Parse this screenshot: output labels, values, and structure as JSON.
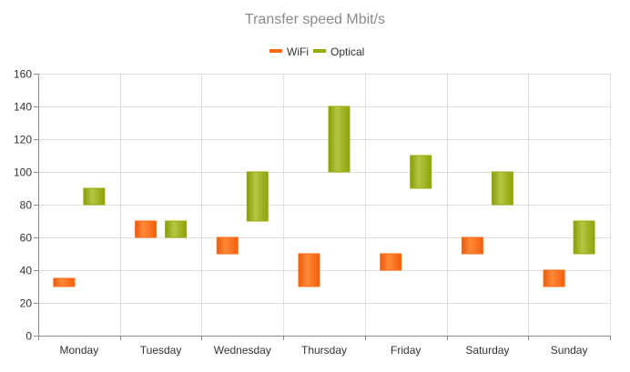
{
  "chart_data": {
    "type": "bar",
    "subtype": "range-column",
    "title": "Transfer speed Mbit/s",
    "categories": [
      "Monday",
      "Tuesday",
      "Wednesday",
      "Thursday",
      "Friday",
      "Saturday",
      "Sunday"
    ],
    "series": [
      {
        "name": "WiFi",
        "color": "#ff6a13",
        "ranges": [
          [
            30,
            35
          ],
          [
            60,
            70
          ],
          [
            50,
            60
          ],
          [
            30,
            50
          ],
          [
            40,
            50
          ],
          [
            50,
            60
          ],
          [
            30,
            40
          ]
        ]
      },
      {
        "name": "Optical",
        "color": "#98ac0e",
        "ranges": [
          [
            80,
            90
          ],
          [
            60,
            70
          ],
          [
            70,
            100
          ],
          [
            100,
            140
          ],
          [
            90,
            110
          ],
          [
            80,
            100
          ],
          [
            50,
            70
          ]
        ]
      }
    ],
    "ylim": [
      0,
      160
    ],
    "yticks": [
      0,
      20,
      40,
      60,
      80,
      100,
      120,
      140,
      160
    ],
    "grid": true,
    "legend_position": "top"
  }
}
